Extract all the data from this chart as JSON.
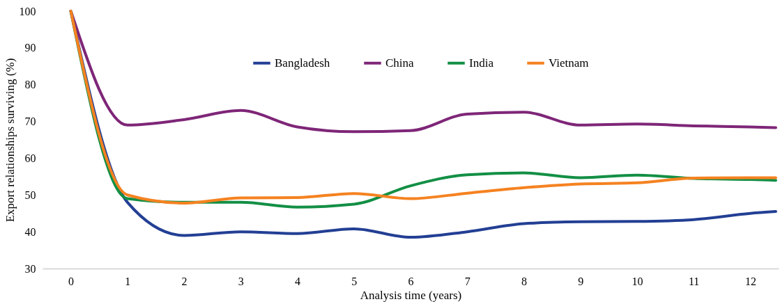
{
  "chart_data": {
    "type": "line",
    "xlabel": "Analysis time (years)",
    "ylabel": "Export relationships surviving (%)",
    "x": [
      0,
      1,
      2,
      3,
      4,
      5,
      6,
      7,
      8,
      9,
      10,
      11,
      12,
      12.45
    ],
    "series": [
      {
        "name": "Bangladesh",
        "color": "#233f94",
        "values": [
          100,
          48,
          39,
          40,
          39.5,
          40.8,
          38.5,
          40,
          42.2,
          42.7,
          42.8,
          43.3,
          45,
          45.5
        ]
      },
      {
        "name": "China",
        "color": "#7e2678",
        "values": [
          100,
          69,
          70.5,
          73,
          68.5,
          67.2,
          67.5,
          72,
          72.5,
          69,
          69.3,
          68.8,
          68.5,
          68.3
        ]
      },
      {
        "name": "India",
        "color": "#138f45",
        "values": [
          100,
          49,
          48,
          48,
          46.7,
          47.5,
          52.5,
          55.5,
          56,
          54.7,
          55.4,
          54.5,
          54.2,
          54
        ]
      },
      {
        "name": "Vietnam",
        "color": "#f58220",
        "values": [
          100,
          50,
          47.8,
          49.2,
          49.3,
          50.4,
          49,
          50.5,
          52,
          53,
          53.3,
          54.6,
          54.7,
          54.7
        ]
      }
    ],
    "xlim": [
      -0.5,
      12.5
    ],
    "xticks": [
      0,
      1,
      2,
      3,
      4,
      5,
      6,
      7,
      8,
      9,
      10,
      11,
      12
    ],
    "ylim": [
      30,
      100
    ],
    "yticks": [
      30,
      40,
      50,
      60,
      70,
      80,
      90,
      100
    ],
    "grid": false,
    "legend": "top",
    "marker": "none",
    "line_style": "solid"
  }
}
